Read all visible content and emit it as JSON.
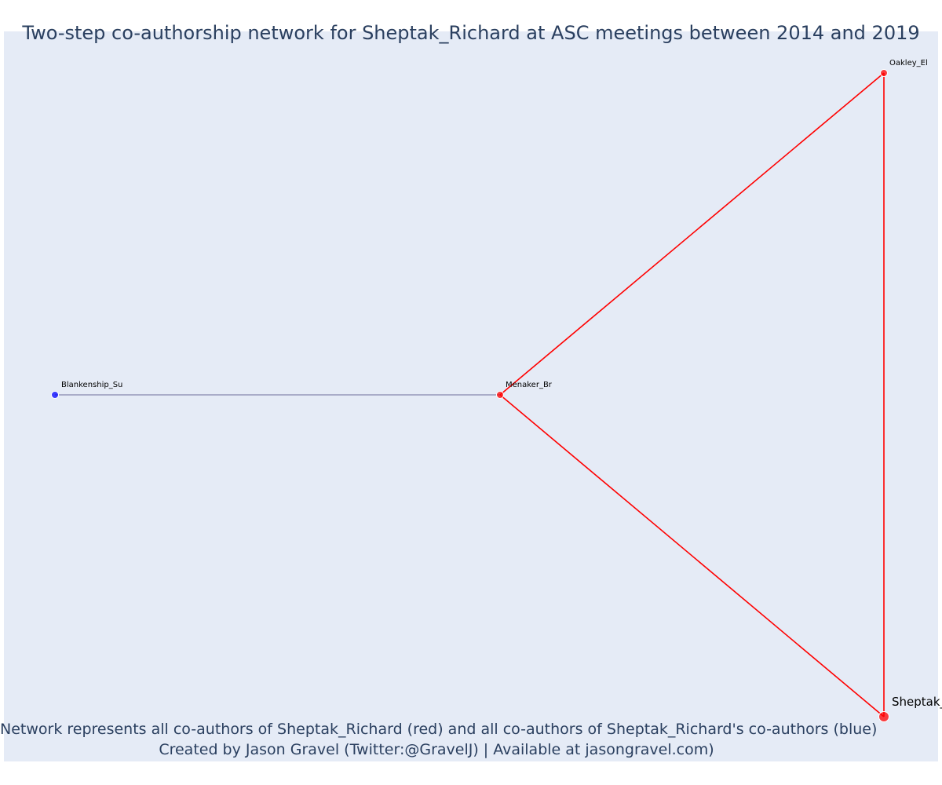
{
  "figure": {
    "title": "Two-step co-authorship network for Sheptak_Richard at ASC meetings between 2014 and 2019",
    "caption_line1": "Network represents all co-authors of Sheptak_Richard (red) and all co-authors of Sheptak_Richard's co-authors (blue)",
    "caption_line2": "Created by Jason Gravel (Twitter:@GravelJ) | Available at jasongravel.com)"
  },
  "colors": {
    "background": "#e5ebf6",
    "first_step": "#ff0000",
    "second_step": "#0000ff",
    "edge_second": "#6d6d9a",
    "text": "#2a3f5f"
  },
  "network": {
    "nodes": [
      {
        "id": "Sheptak_Richard",
        "label": "Sheptak_",
        "group": "focal"
      },
      {
        "id": "Oakley_El",
        "label": "Oakley_El",
        "group": "coauthor"
      },
      {
        "id": "Menaker_Br",
        "label": "Menaker_Br",
        "group": "coauthor"
      },
      {
        "id": "Blankenship_Su",
        "label": "Blankenship_Su",
        "group": "second-step"
      }
    ],
    "edges": [
      {
        "source": "Sheptak_Richard",
        "target": "Oakley_El",
        "type": "first"
      },
      {
        "source": "Sheptak_Richard",
        "target": "Menaker_Br",
        "type": "first"
      },
      {
        "source": "Oakley_El",
        "target": "Menaker_Br",
        "type": "first"
      },
      {
        "source": "Menaker_Br",
        "target": "Blankenship_Su",
        "type": "second"
      }
    ]
  }
}
